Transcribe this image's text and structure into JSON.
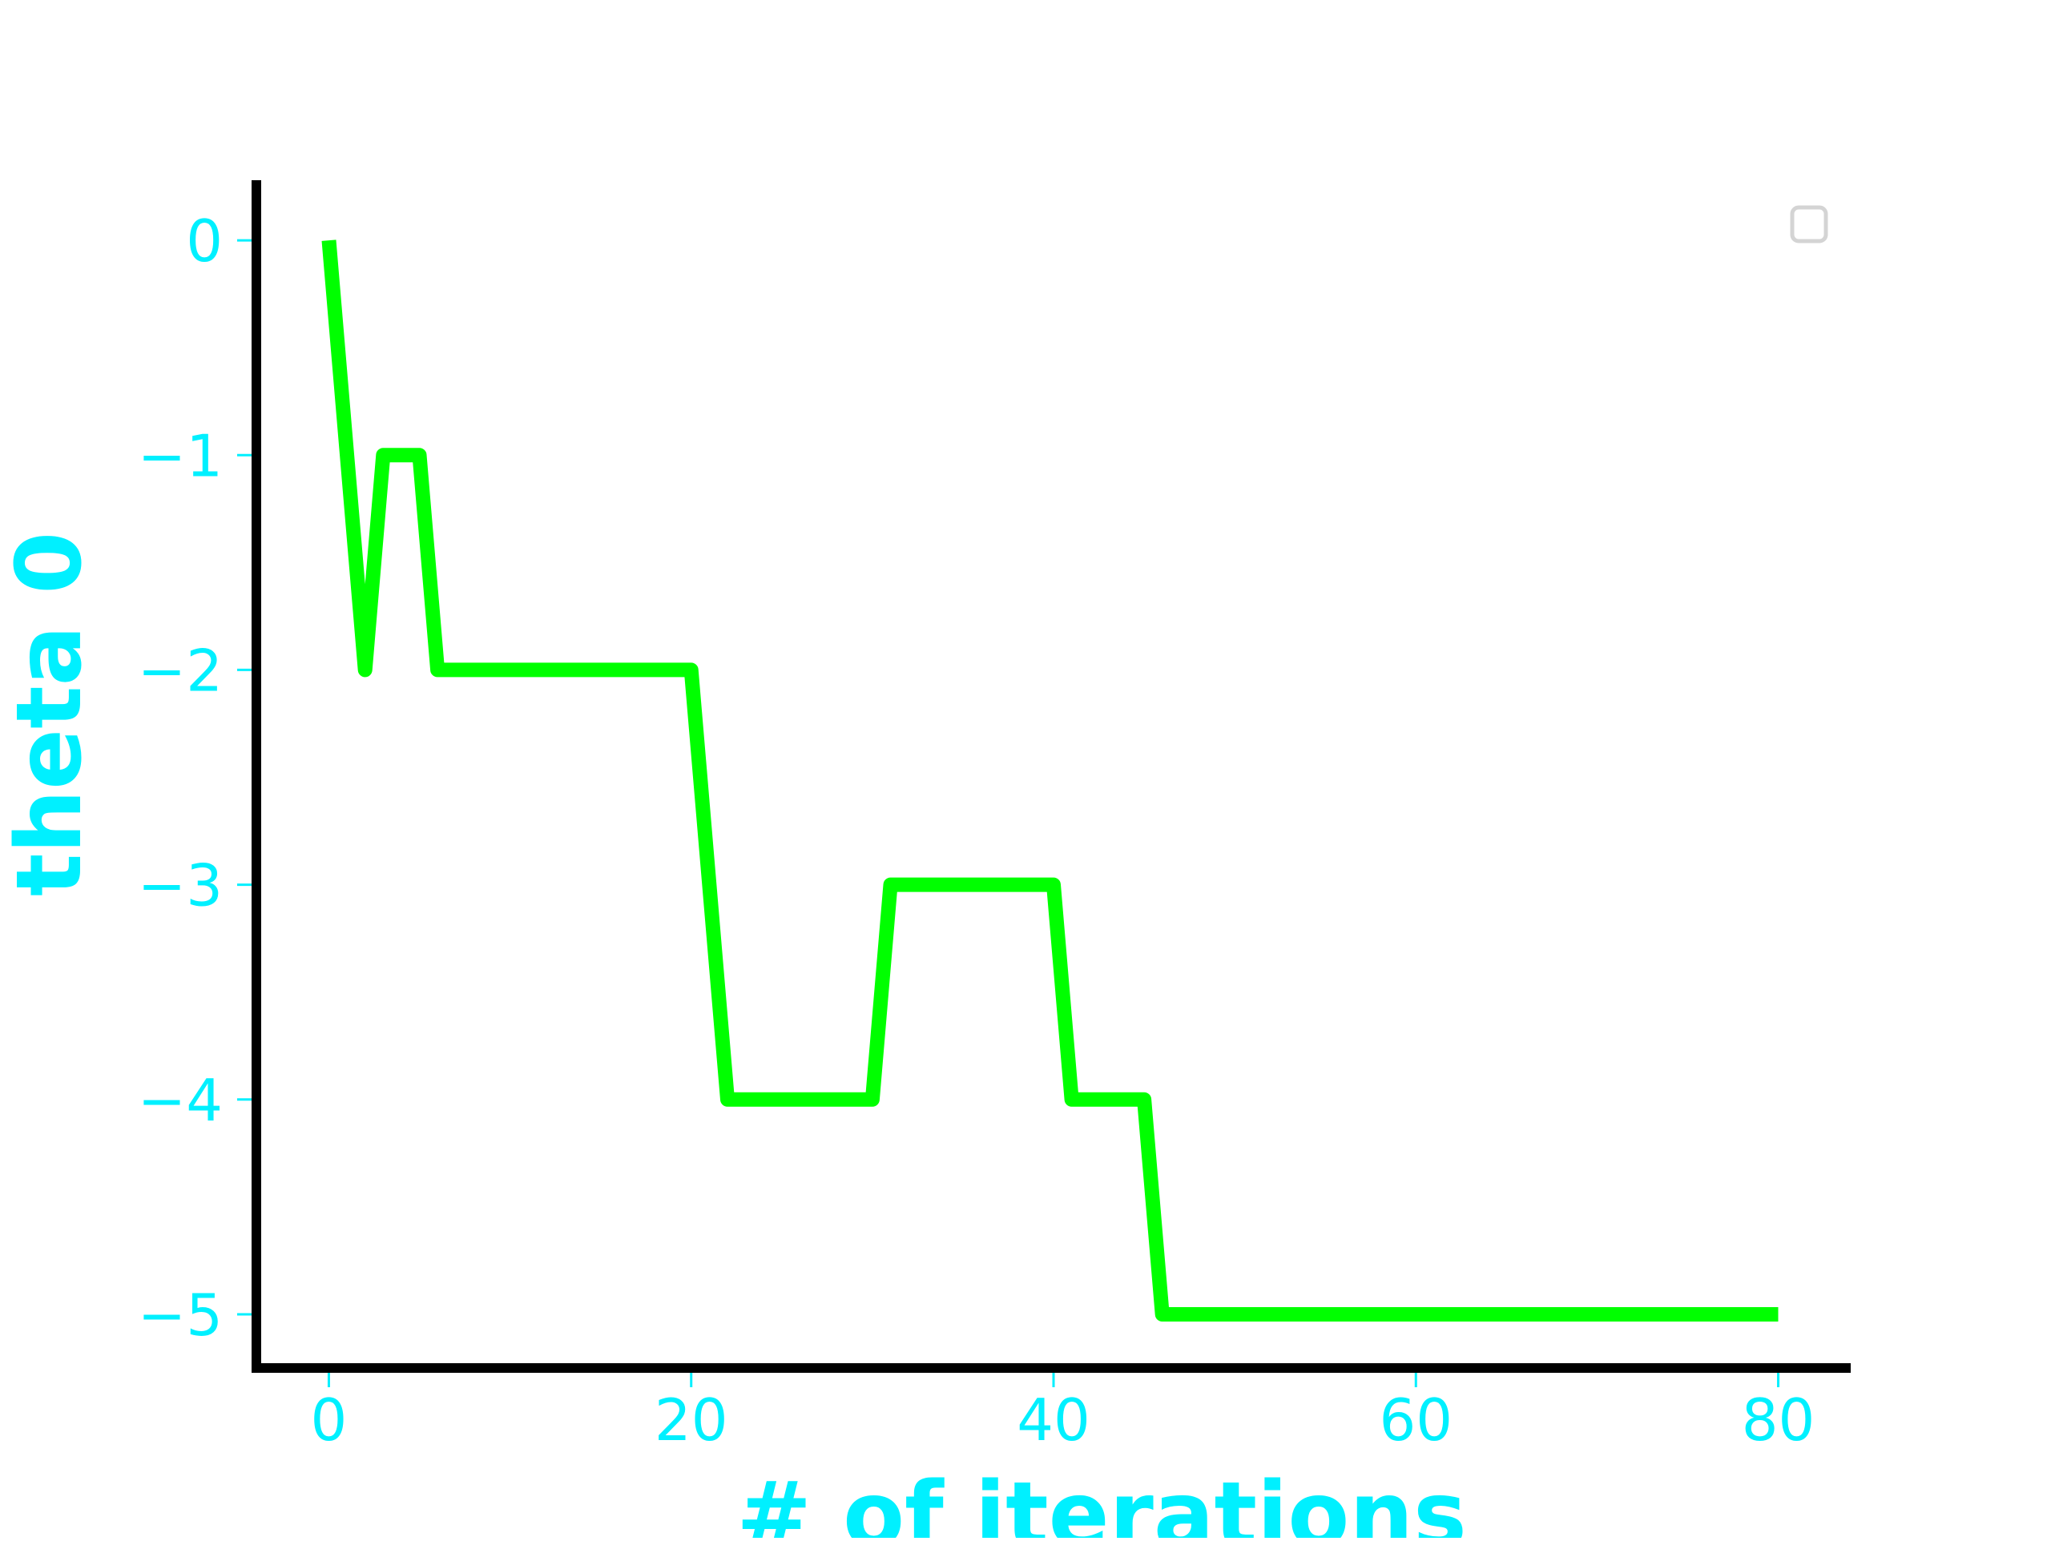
{
  "chart_data": {
    "type": "line",
    "title": "",
    "xlabel": "# of iterations",
    "ylabel": "theta 0",
    "xlim": [
      -4,
      84
    ],
    "ylim": [
      -5.25,
      0.28
    ],
    "x_ticks": [
      0,
      20,
      40,
      60,
      80
    ],
    "x_tick_labels": [
      "0",
      "20",
      "40",
      "60",
      "80"
    ],
    "y_ticks": [
      0,
      -1,
      -2,
      -3,
      -4,
      -5
    ],
    "y_tick_labels": [
      "0",
      "−1",
      "−2",
      "−3",
      "−4",
      "−5"
    ],
    "grid": false,
    "legend": {
      "position": "upper-right",
      "entries": []
    },
    "series": [
      {
        "color": "#00ff00",
        "x": [
          0,
          2,
          3,
          5,
          6,
          20,
          22,
          30,
          31,
          40,
          41,
          45,
          46,
          80
        ],
        "y": [
          0,
          -2,
          -1,
          -1,
          -2,
          -2,
          -4,
          -4,
          -3,
          -3,
          -4,
          -4,
          -5,
          -5
        ]
      }
    ],
    "colors": {
      "text": "#00f0ff",
      "line": "#00ff00",
      "spines": "#000000",
      "legend_frame": "#d4d4d4"
    }
  }
}
